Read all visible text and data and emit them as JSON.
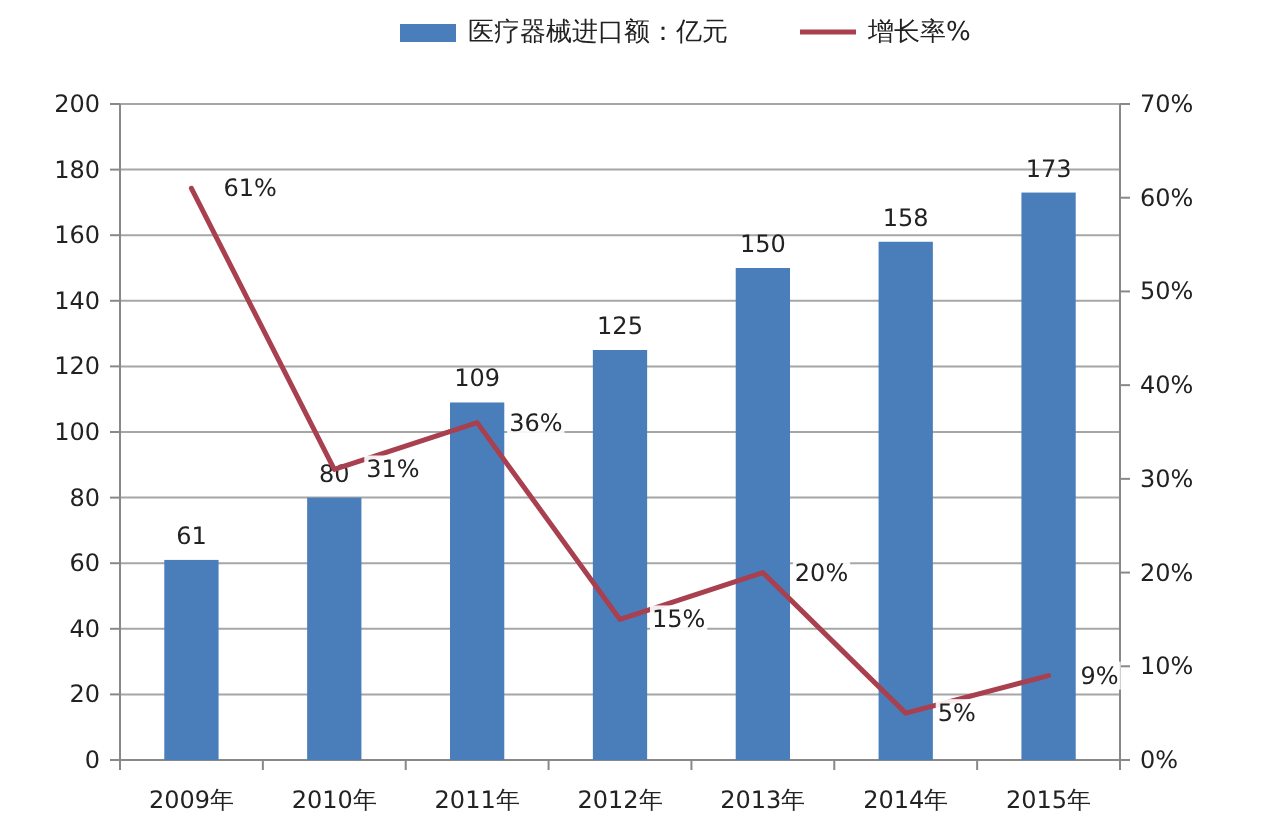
{
  "chart_data": {
    "type": "bar",
    "categories": [
      "2009年",
      "2010年",
      "2011年",
      "2012年",
      "2013年",
      "2014年",
      "2015年"
    ],
    "series": [
      {
        "name": "医疗器械进口额：亿元",
        "color": "#4a7ebb",
        "values": [
          61,
          80,
          109,
          125,
          150,
          158,
          173
        ],
        "value_labels": [
          "61",
          "80",
          "109",
          "125",
          "150",
          "158",
          "173"
        ]
      },
      {
        "name": "增长率%",
        "type": "line",
        "axis": "y2",
        "color": "#a8404f",
        "values": [
          61,
          31,
          36,
          15,
          20,
          5,
          9
        ],
        "value_labels": [
          "61%",
          "31%",
          "36%",
          "15%",
          "20%",
          "5%",
          "9%"
        ]
      }
    ],
    "ylim": [
      0,
      200
    ],
    "yticks": [
      0,
      20,
      40,
      60,
      80,
      100,
      120,
      140,
      160,
      180,
      200
    ],
    "y2lim": [
      0,
      70
    ],
    "y2ticks": [
      {
        "value": 0,
        "label": "0%"
      },
      {
        "value": 10,
        "label": "10%"
      },
      {
        "value": 20,
        "label": "20%"
      },
      {
        "value": 30,
        "label": "30%"
      },
      {
        "value": 40,
        "label": "40%"
      },
      {
        "value": 50,
        "label": "50%"
      },
      {
        "value": 60,
        "label": "60%"
      },
      {
        "value": 70,
        "label": "70%"
      }
    ],
    "grid": "y",
    "legend": "top",
    "line_style": "solid",
    "marker": "none"
  }
}
